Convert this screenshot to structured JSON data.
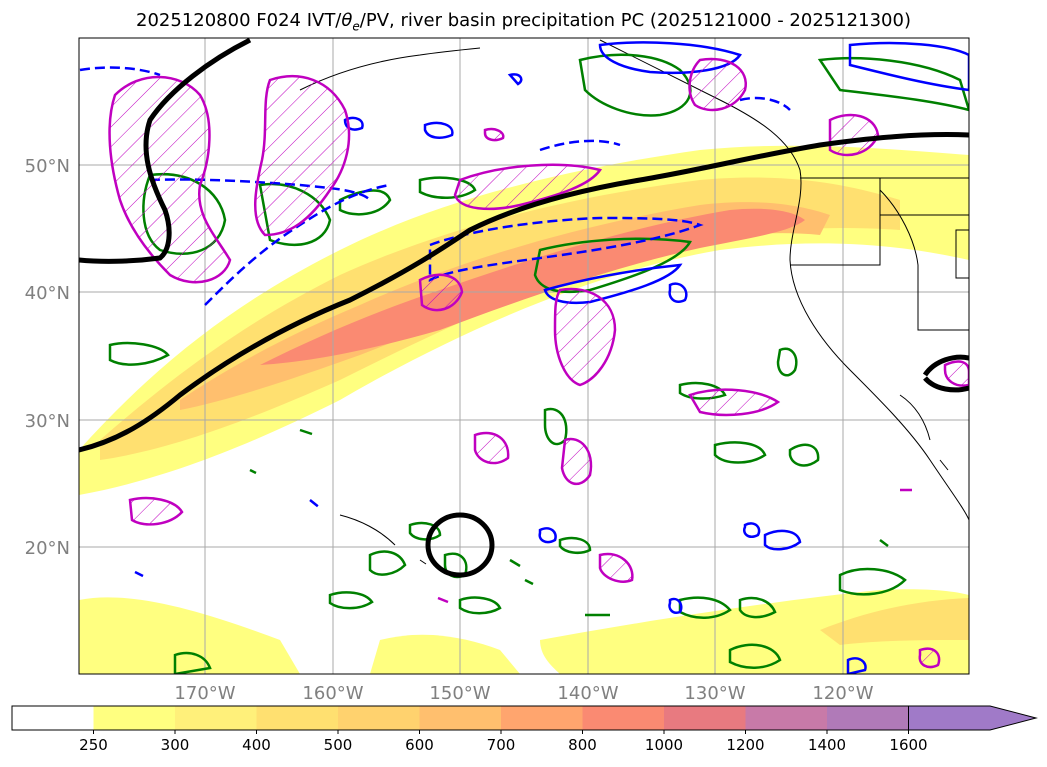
{
  "title": {
    "prefix": "2025120800 F024 IVT/",
    "theta": "θ",
    "theta_sub": "e",
    "suffix": "/PV, river basin precipitation PC (2025121000 - 2025121300)"
  },
  "map": {
    "lat_labels": [
      "50°N",
      "40°N",
      "30°N",
      "20°N"
    ],
    "lon_labels": [
      "170°W",
      "160°W",
      "150°W",
      "140°W",
      "130°W",
      "120°W"
    ]
  },
  "colorbar": {
    "ticks": [
      "250",
      "300",
      "400",
      "500",
      "600",
      "700",
      "800",
      "1000",
      "1200",
      "1400",
      "1600"
    ],
    "colors": [
      "#ffffff",
      "#ffff80",
      "#fff07a",
      "#ffe070",
      "#ffd26e",
      "#ffbf6e",
      "#ffa56e",
      "#fa8a72",
      "#e87a80",
      "#c87aa8",
      "#b07ab8",
      "#a07ac8"
    ]
  },
  "legend_colors": {
    "pv": "#008000",
    "theta_e": "#0000ff",
    "precip": "#c000c0",
    "jet": "#000000"
  }
}
